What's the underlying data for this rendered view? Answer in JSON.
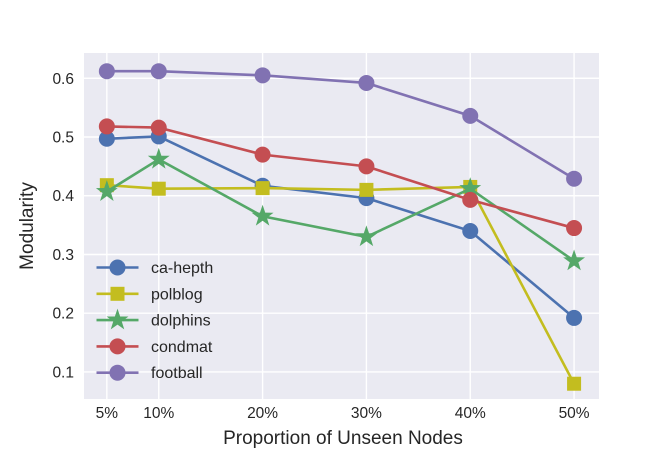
{
  "chart_data": {
    "type": "line",
    "title": "",
    "xlabel": "Proportion of Unseen Nodes",
    "ylabel": "Modularity",
    "x_percent": [
      5,
      10,
      20,
      30,
      40,
      50
    ],
    "x_tick_labels": [
      "5%",
      "10%",
      "20%",
      "30%",
      "40%",
      "50%"
    ],
    "y_ticks": [
      0.1,
      0.2,
      0.3,
      0.4,
      0.5,
      0.6
    ],
    "y_tick_labels": [
      "0.1",
      "0.2",
      "0.3",
      "0.4",
      "0.5",
      "0.6"
    ],
    "xlim": [
      2.8,
      52.4
    ],
    "ylim": [
      0.054,
      0.643
    ],
    "grid": true,
    "legend_position": "lower-left-inside",
    "series": [
      {
        "name": "ca-hepth",
        "marker": "circle",
        "color": "#4c72b0",
        "values": [
          0.497,
          0.501,
          0.417,
          0.396,
          0.34,
          0.192
        ]
      },
      {
        "name": "polblog",
        "marker": "square",
        "color": "#c3bd1f",
        "values": [
          0.418,
          0.412,
          0.413,
          0.41,
          0.415,
          0.08
        ]
      },
      {
        "name": "dolphins",
        "marker": "star",
        "color": "#55a868",
        "values": [
          0.407,
          0.462,
          0.365,
          0.33,
          0.412,
          0.289
        ]
      },
      {
        "name": "condmat",
        "marker": "circle",
        "color": "#c44e52",
        "values": [
          0.518,
          0.516,
          0.47,
          0.45,
          0.393,
          0.345
        ]
      },
      {
        "name": "football",
        "marker": "circle",
        "color": "#8172b2",
        "values": [
          0.612,
          0.612,
          0.605,
          0.592,
          0.536,
          0.429
        ]
      }
    ],
    "colors": {
      "plot_background": "#eaeaf2",
      "grid_line": "#ffffff",
      "text": "#262626",
      "figure_background": "#ffffff"
    }
  }
}
